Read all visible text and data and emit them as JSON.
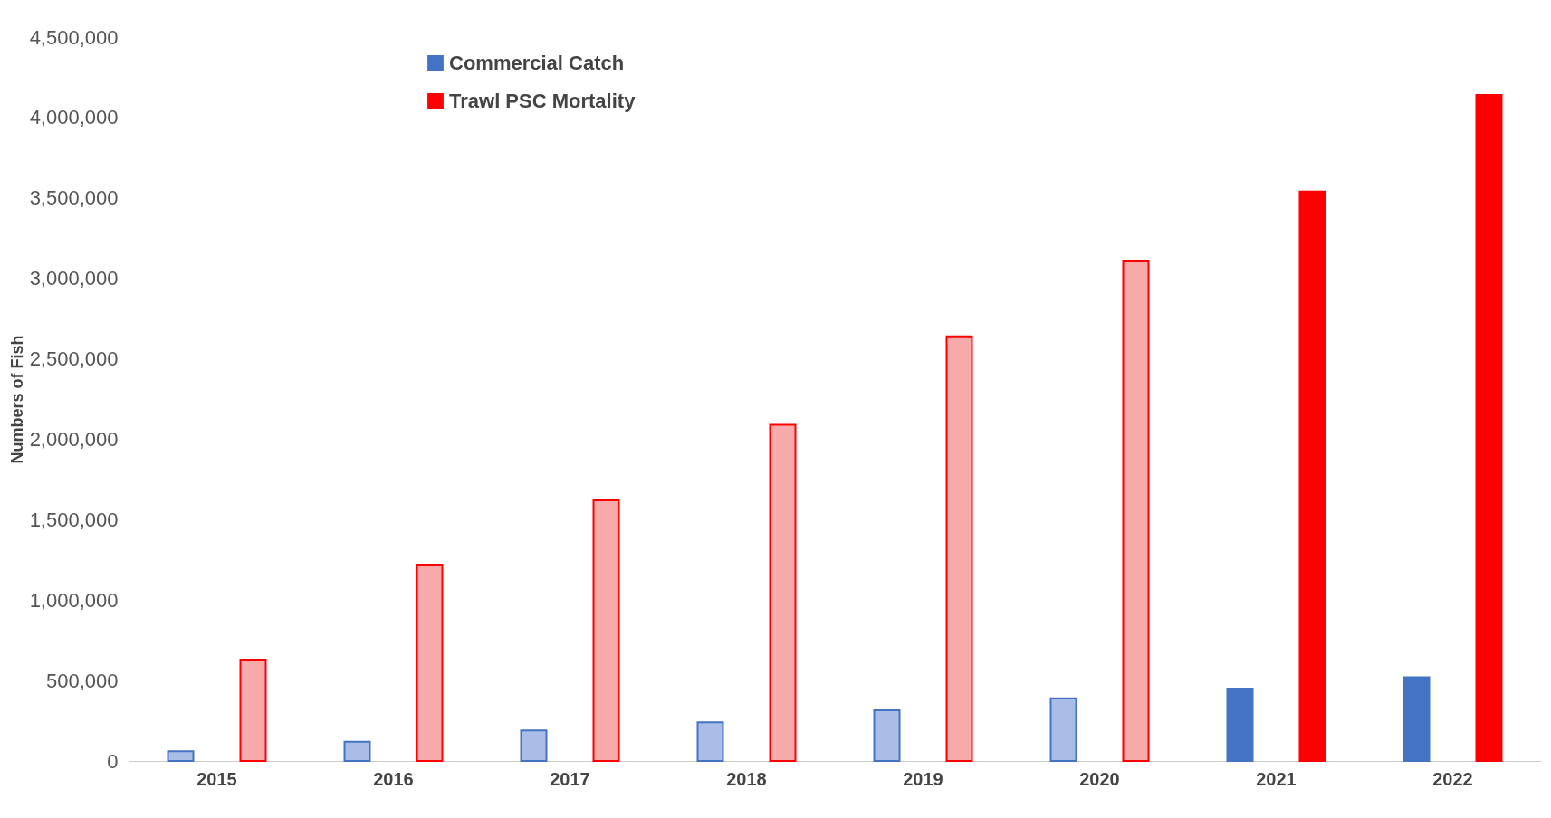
{
  "chart_data": {
    "type": "bar",
    "ylabel": "Numbers of Fish",
    "categories": [
      "2015",
      "2016",
      "2017",
      "2018",
      "2019",
      "2020",
      "2021",
      "2022"
    ],
    "series": [
      {
        "name": "Commercial Catch",
        "color": "#4472c4",
        "colors": [
          "#a9bde6",
          "#a9bde6",
          "#a9bde6",
          "#a9bde6",
          "#a9bde6",
          "#a9bde6",
          "#4472c4",
          "#4472c4"
        ],
        "values": [
          60000,
          120000,
          190000,
          240000,
          315000,
          390000,
          450000,
          520000
        ]
      },
      {
        "name": "Trawl PSC Mortality",
        "color": "#ff0000",
        "colors": [
          "#f6aaaa",
          "#f6aaaa",
          "#f6aaaa",
          "#f6aaaa",
          "#f6aaaa",
          "#f6aaaa",
          "#ff0000",
          "#ff0000"
        ],
        "values": [
          630000,
          1220000,
          1620000,
          2090000,
          2640000,
          3110000,
          3540000,
          4140000
        ]
      }
    ],
    "ylim": [
      0,
      4500000
    ],
    "yticks": [
      0,
      {
        "value": 500000,
        "label": "500,000"
      },
      {
        "value": 1000000,
        "label": "1,000,000"
      },
      {
        "value": 1500000,
        "label": "1,500,000"
      },
      {
        "value": 2000000,
        "label": "2,000,000"
      },
      {
        "value": 2500000,
        "label": "2,500,000"
      },
      {
        "value": 3000000,
        "label": "3,000,000"
      },
      {
        "value": 3500000,
        "label": "3,500,000"
      },
      {
        "value": 4000000,
        "label": "4,000,000"
      },
      {
        "value": 4500000,
        "label": "4,500,000"
      }
    ],
    "grid": false,
    "legend": "top left"
  }
}
